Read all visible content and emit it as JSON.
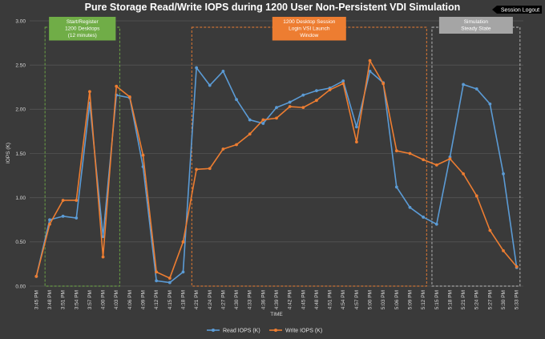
{
  "chart_data": {
    "type": "line",
    "title": "Pure Storage Read/Write IOPS during 1200 User Non-Persistent VDI Simulation",
    "xlabel": "TIME",
    "ylabel": "IOPS (K)",
    "ylim": [
      0,
      3.0
    ],
    "yticks": [
      "0.00",
      "0.50",
      "1.00",
      "1.50",
      "2.00",
      "2.50",
      "3.00"
    ],
    "grid": true,
    "legend_position": "bottom",
    "x": [
      "3:45 PM",
      "3:48 PM",
      "3:51 PM",
      "3:54 PM",
      "3:57 PM",
      "4:00 PM",
      "4:03 PM",
      "4:06 PM",
      "4:09 PM",
      "4:12 PM",
      "4:15 PM",
      "4:18 PM",
      "4:21 PM",
      "4:24 PM",
      "4:27 PM",
      "4:30 PM",
      "4:33 PM",
      "4:36 PM",
      "4:39 PM",
      "4:42 PM",
      "4:45 PM",
      "4:48 PM",
      "4:51 PM",
      "4:54 PM",
      "4:57 PM",
      "5:00 PM",
      "5:03 PM",
      "5:06 PM",
      "5:09 PM",
      "5:12 PM",
      "5:15 PM",
      "5:18 PM",
      "5:21 PM",
      "5:24 PM",
      "5:27 PM",
      "5:30 PM",
      "5:33 PM"
    ],
    "series": [
      {
        "name": "Read IOPS (K)",
        "color": "#5b9bd5",
        "values": [
          0.11,
          0.75,
          0.79,
          0.77,
          2.07,
          0.56,
          2.16,
          2.13,
          1.35,
          0.06,
          0.04,
          0.16,
          2.47,
          2.27,
          2.43,
          2.11,
          1.88,
          1.84,
          2.02,
          2.08,
          2.16,
          2.21,
          2.24,
          2.32,
          1.8,
          2.43,
          2.3,
          1.12,
          0.89,
          0.78,
          0.7,
          1.46,
          2.28,
          2.23,
          2.06,
          1.27,
          0.21
        ]
      },
      {
        "name": "Write IOPS (K)",
        "color": "#ed7d31",
        "values": [
          0.11,
          0.7,
          0.97,
          0.97,
          2.2,
          0.33,
          2.26,
          2.14,
          1.48,
          0.16,
          0.09,
          0.5,
          1.32,
          1.33,
          1.55,
          1.6,
          1.72,
          1.88,
          1.9,
          2.03,
          2.02,
          2.1,
          2.22,
          2.29,
          1.63,
          2.55,
          2.29,
          1.53,
          1.5,
          1.43,
          1.37,
          1.44,
          1.27,
          1.02,
          0.63,
          0.4,
          0.22
        ]
      }
    ],
    "annotations": [
      {
        "lines": [
          "Start/Register",
          "1200 Desktops",
          "(12 minutes)"
        ],
        "fill": "#70ad47",
        "border": "#70ad47",
        "from": "3:48 PM",
        "to": "4:03 PM"
      },
      {
        "lines": [
          "1200 Desktop Session",
          "Login VSI Launch",
          "Window"
        ],
        "fill": "#ed7d31",
        "border": "#ed7d31",
        "from": "4:21 PM",
        "to": "5:12 PM"
      },
      {
        "lines": [
          "Simulation",
          "Steady State"
        ],
        "fill": "#a5a5a5",
        "border": "#bfbfbf",
        "from": "5:15 PM",
        "to": "5:33 PM"
      },
      {
        "lines": [
          "Session Logout"
        ],
        "fill": "#000000",
        "border": "#000000",
        "arrow": true
      }
    ]
  }
}
